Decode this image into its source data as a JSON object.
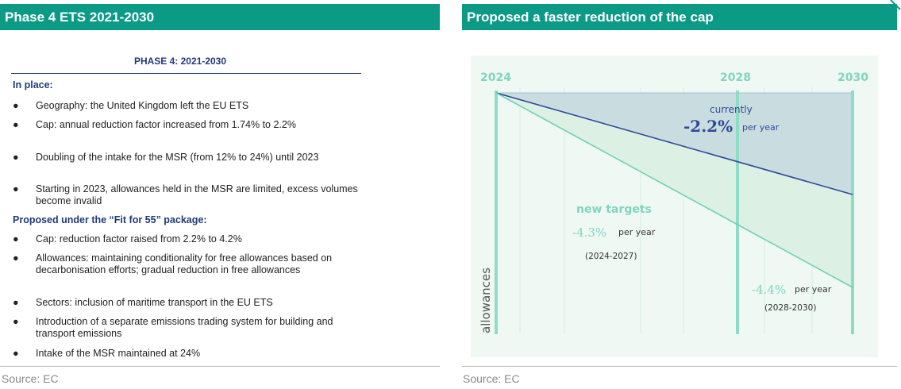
{
  "left_panel": {
    "header": "Phase 4 ETS 2021-2030",
    "table_title": "PHASE 4: 2021-2030",
    "in_place": {
      "heading": "In place:",
      "items": [
        "Geography: the United Kingdom left the EU ETS",
        "Cap: annual reduction factor increased from 1.74% to 2.2%",
        "Doubling of the intake for the MSR (from 12% to 24%) until 2023",
        "Starting in 2023, allowances held in the MSR are limited, excess volumes become invalid"
      ]
    },
    "proposed": {
      "heading": "Proposed under the “Fit for 55” package:",
      "items": [
        "Cap: reduction factor raised from 2.2% to 4.2%",
        "Allowances: maintaining conditionality for free allowances based on decarbonisation efforts; gradual reduction in free allowances",
        "Sectors: inclusion of maritime transport in the EU ETS",
        "Introduction of a separate emissions trading system for building and transport emissions",
        "Intake of the MSR maintained at 24%"
      ]
    },
    "bullet_char": "●",
    "source": "Source: EC"
  },
  "right_panel": {
    "header": "Proposed a faster reduction of the cap",
    "source": "Source: EC"
  },
  "chart_data": {
    "type": "line",
    "x_ticks": [
      "2024",
      "2028",
      "2030"
    ],
    "x": [
      2024,
      2028,
      2030
    ],
    "ylabel": "allowances",
    "series": [
      {
        "label_lines": [
          "currently",
          "-2.2%",
          "per year"
        ],
        "slope_pct_per_year": -2.2,
        "color": "#2e4a9c"
      },
      {
        "label_lines": [
          "new targets",
          "-4.3%",
          "per year",
          "(2024-2027)"
        ],
        "slope_pct_per_year": -4.3,
        "period": "2024-2027",
        "color": "#6fd1b4"
      },
      {
        "label_lines": [
          "-4.4%",
          "per year",
          "(2028-2030)"
        ],
        "slope_pct_per_year": -4.4,
        "period": "2028-2030",
        "color": "#6fd1b4"
      }
    ],
    "colors": {
      "current_fill": "#c9dde0",
      "target_fill": "#dcf0e3",
      "vertical_bar": "#8fdcc6",
      "grid": "#cfe8de"
    }
  },
  "colors": {
    "header_bg": "#0b9a86",
    "navy": "#1f3a7a"
  }
}
